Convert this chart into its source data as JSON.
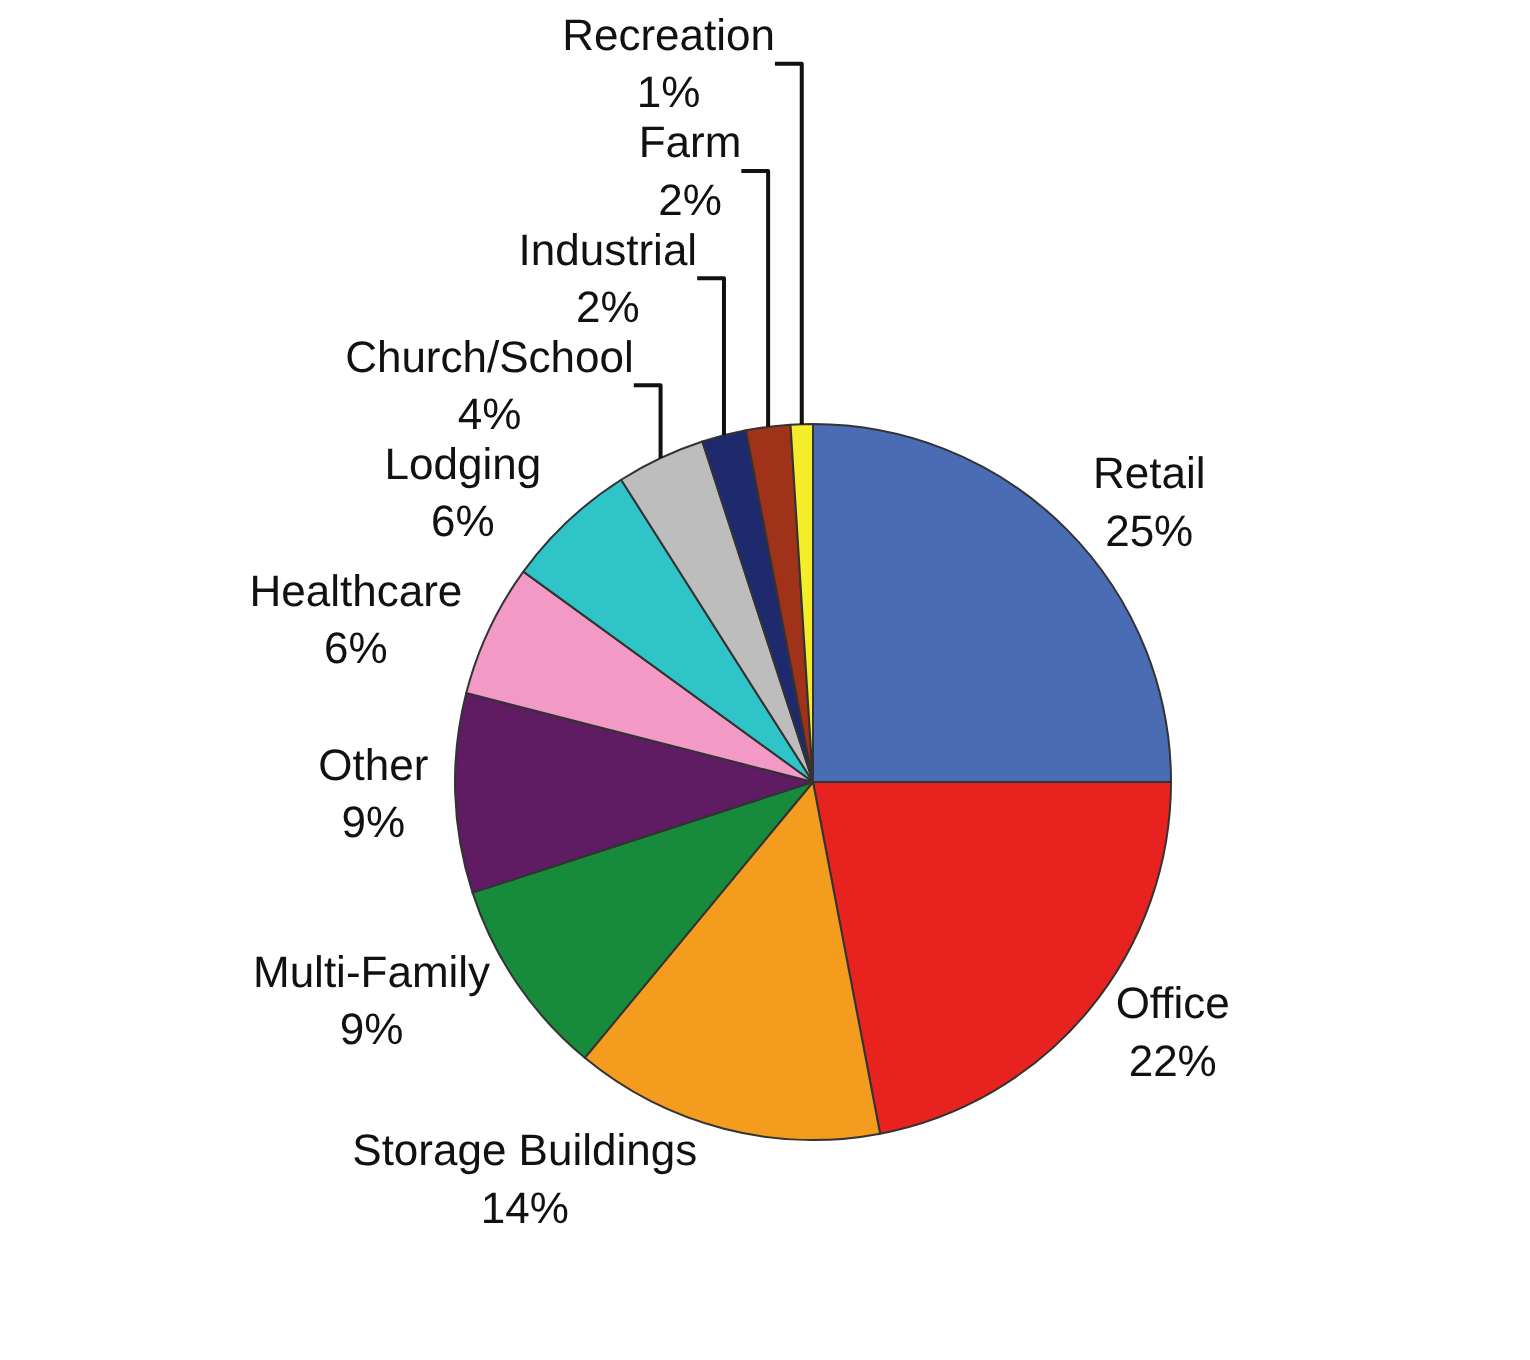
{
  "chart_data": {
    "type": "pie",
    "categories": [
      "Retail",
      "Office",
      "Storage Buildings",
      "Multi-Family",
      "Other",
      "Healthcare",
      "Lodging",
      "Church/School",
      "Industrial",
      "Farm",
      "Recreation"
    ],
    "values": [
      25,
      22,
      14,
      9,
      9,
      6,
      6,
      4,
      2,
      2,
      1
    ],
    "value_labels": [
      "25%",
      "22%",
      "14%",
      "9%",
      "9%",
      "6%",
      "6%",
      "4%",
      "2%",
      "2%",
      "1%"
    ],
    "colors": [
      "#4a6cb5",
      "#e8221f",
      "#f39c1e",
      "#178a3c",
      "#5f1c63",
      "#f29ac5",
      "#2fc4c8",
      "#bdbdbd",
      "#1f2a6e",
      "#a0321a",
      "#f5ec2a"
    ],
    "legend": false
  }
}
